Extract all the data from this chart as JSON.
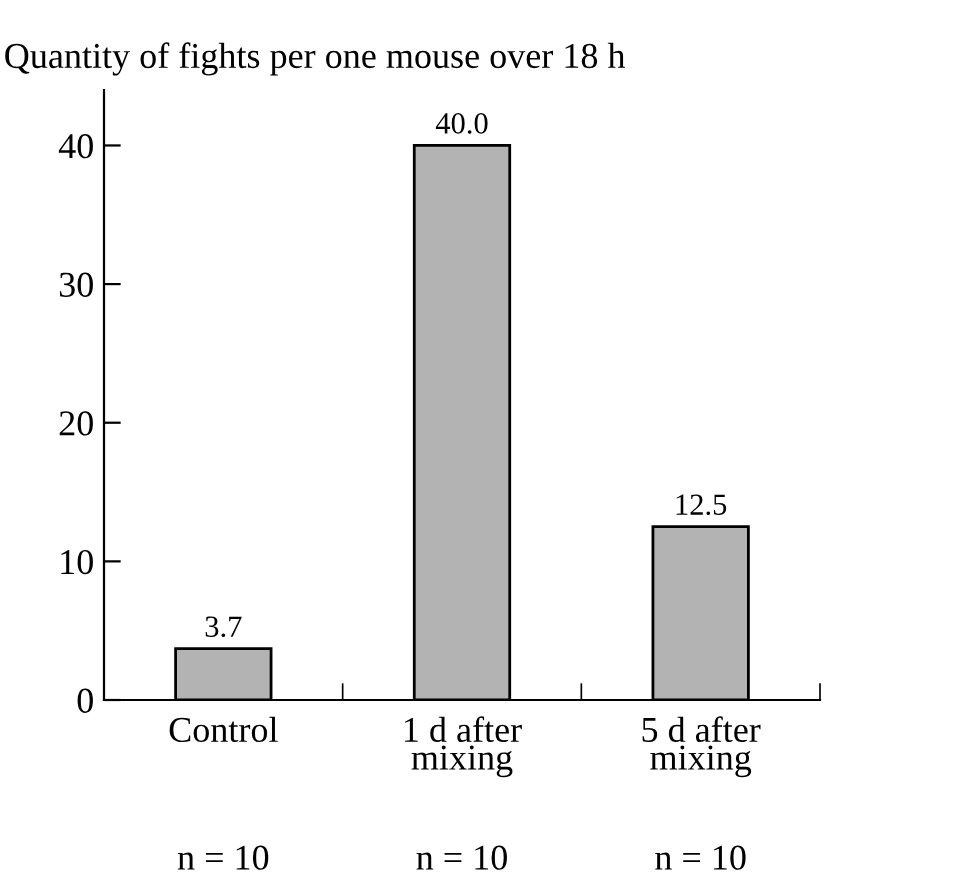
{
  "chart_data": {
    "type": "bar",
    "title": "Quantity of fights per one mouse over 18 h",
    "categories": [
      "Control",
      "1 d after\nmixing",
      "5 d after\nmixing"
    ],
    "values": [
      3.7,
      40.0,
      12.5
    ],
    "color": "#b3b3b3",
    "value_labels": [
      "3.7",
      "40.0",
      "12.5"
    ],
    "ylim": [
      0,
      44
    ],
    "yticks": [
      0,
      10,
      20,
      30,
      40
    ],
    "grid": false,
    "legend": false,
    "annotations": [
      "n = 10",
      "n = 10",
      "n = 10"
    ]
  }
}
